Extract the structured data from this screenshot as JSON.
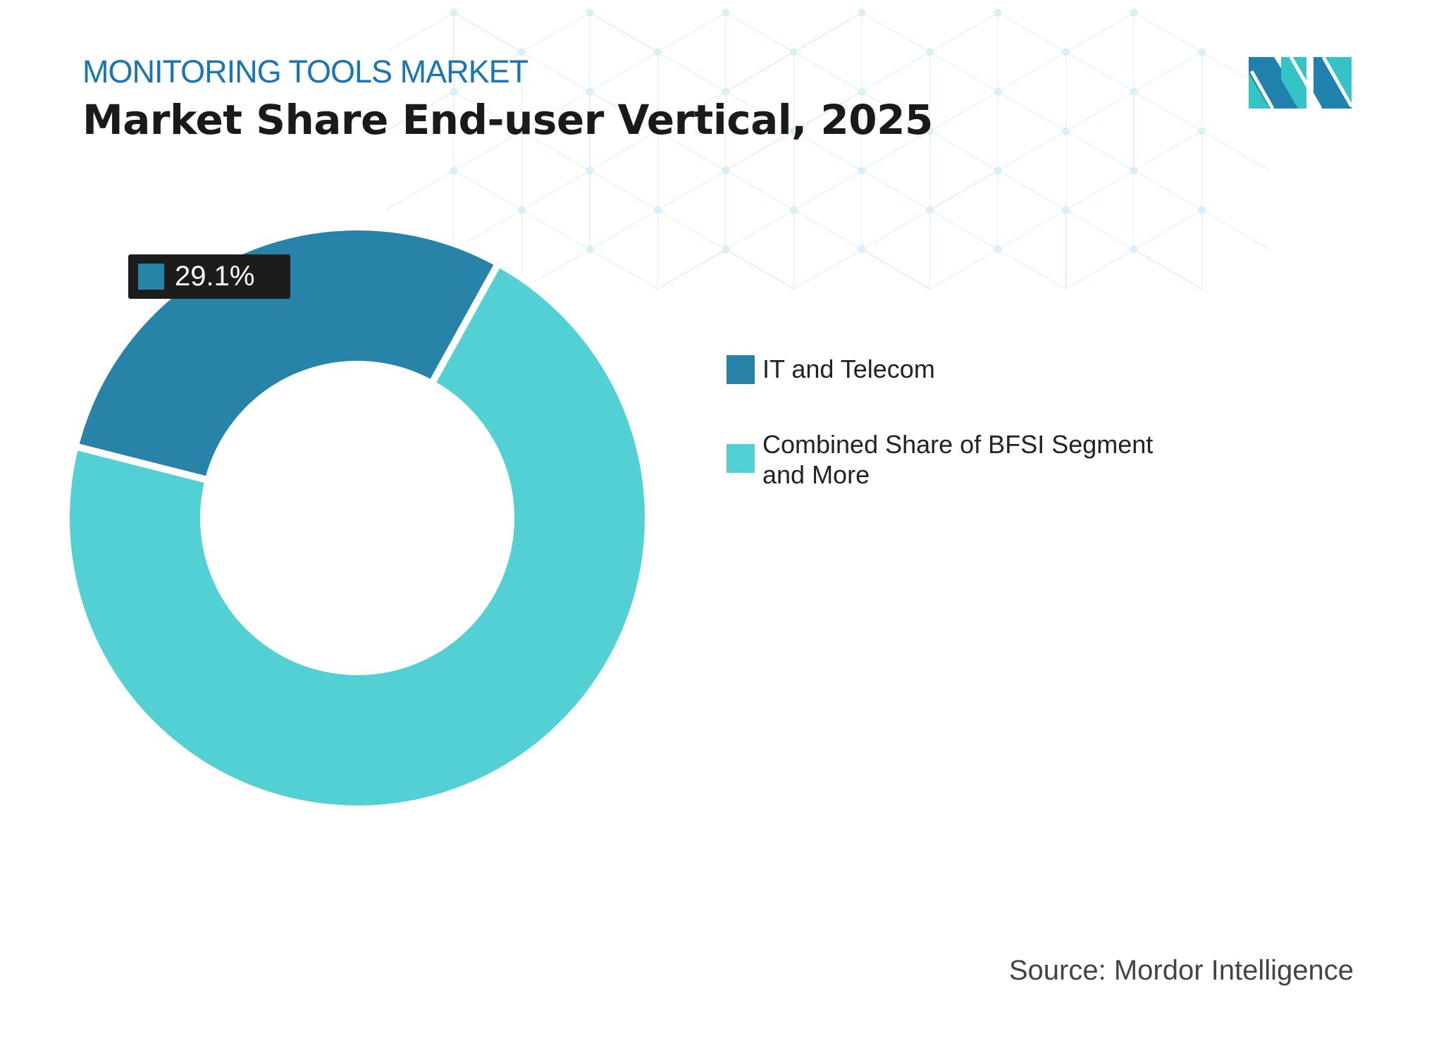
{
  "header": {
    "subtitle": "MONITORING TOOLS MARKET",
    "title": "Market Share End-user Vertical, 2025"
  },
  "chart_data": {
    "type": "pie",
    "donut": true,
    "categories": [
      "IT and Telecom",
      "Combined Share of BFSI Segment and More"
    ],
    "values": [
      29.1,
      70.9
    ],
    "colors": [
      "#2784a8",
      "#52d0d3"
    ],
    "data_labels": [
      {
        "category": "IT and Telecom",
        "text": "29.1%"
      }
    ],
    "legend_placement": "right"
  },
  "legend": {
    "items": [
      {
        "label": "IT and Telecom",
        "color": "#2784a8"
      },
      {
        "label_line1": "Combined Share of BFSI Segment",
        "label_line2": "and More",
        "color": "#52d0d3"
      }
    ]
  },
  "data_label": "29.1%",
  "source": "Source: Mordor Intelligence",
  "colors": {
    "accent": "#1b75b0",
    "logo_dark": "#2181ad",
    "logo_light": "#36c3c6"
  }
}
